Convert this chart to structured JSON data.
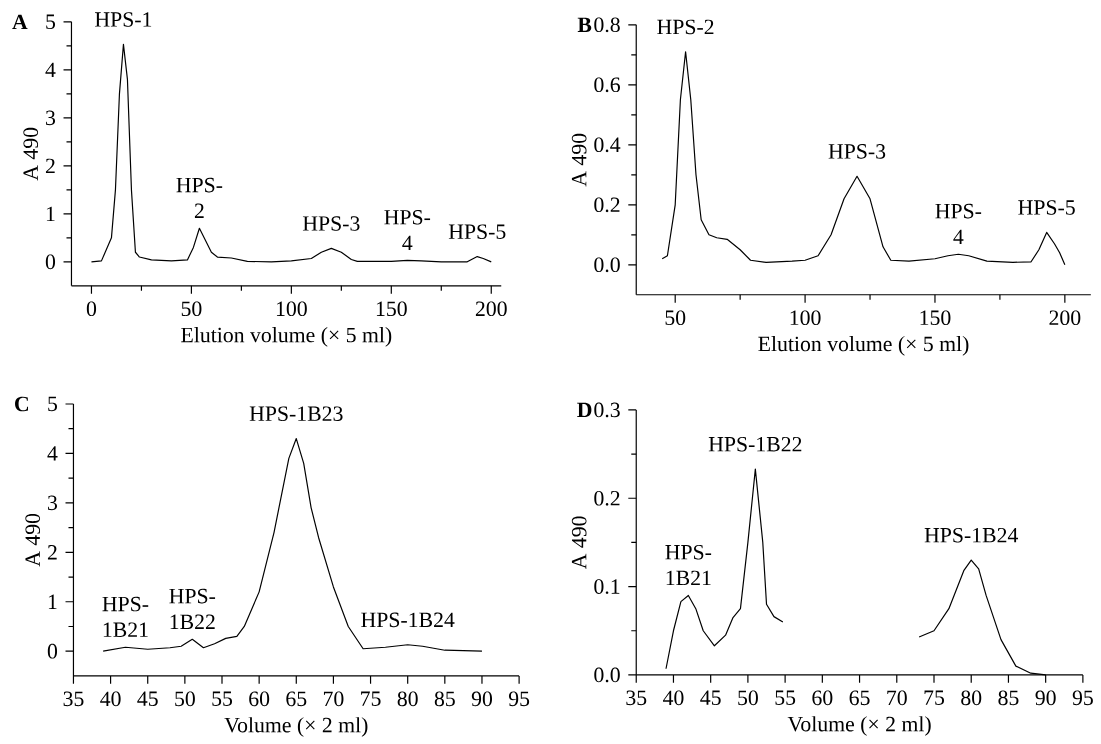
{
  "chart_data": [
    {
      "type": "line",
      "title": "A",
      "xlabel": "Elution volume (× 5 ml)",
      "ylabel": "A 490",
      "color": "#000000",
      "x": [
        0,
        5,
        10,
        12,
        14,
        16,
        18,
        20,
        22,
        24,
        30,
        40,
        48,
        51,
        54,
        57,
        60,
        63,
        70,
        78,
        90,
        100,
        110,
        115,
        120,
        125,
        130,
        133,
        150,
        158,
        165,
        175,
        188,
        193,
        196,
        200
      ],
      "values": [
        0,
        0.02,
        0.5,
        1.5,
        3.5,
        4.53,
        3.8,
        1.5,
        0.2,
        0.1,
        0.04,
        0.02,
        0.04,
        0.3,
        0.7,
        0.45,
        0.2,
        0.1,
        0.08,
        0.01,
        0,
        0.02,
        0.07,
        0.2,
        0.28,
        0.2,
        0.05,
        0.01,
        0.01,
        0.03,
        0.02,
        0,
        0,
        0.11,
        0.07,
        0
      ],
      "xlim": [
        -10,
        205
      ],
      "ylim": [
        -0.5,
        5
      ],
      "xticks": [
        0,
        50,
        100,
        150,
        200
      ],
      "yticks": [
        0,
        1,
        2,
        3,
        4,
        5
      ],
      "annotations": [
        {
          "text": "HPS-1",
          "x": 16,
          "y": 4.53
        },
        {
          "text": "HPS-2",
          "x": 54,
          "y": 0.7
        },
        {
          "text": "HPS-3",
          "x": 120,
          "y": 0.28
        },
        {
          "text": "HPS-4",
          "x": 158,
          "y": 0.03
        },
        {
          "text": "HPS-5",
          "x": 193,
          "y": 0.11
        }
      ]
    },
    {
      "type": "line",
      "title": "B",
      "xlabel": "Elution volume (× 5 ml)",
      "ylabel": "A 490",
      "color": "#000000",
      "x": [
        45,
        47,
        50,
        52,
        54,
        56,
        58,
        60,
        63,
        66,
        70,
        75,
        79,
        85,
        95,
        100,
        105,
        110,
        115,
        120,
        125,
        130,
        133,
        140,
        150,
        155,
        159,
        163,
        170,
        180,
        187,
        190,
        193,
        196,
        198,
        200
      ],
      "values": [
        0.02,
        0.03,
        0.2,
        0.55,
        0.71,
        0.55,
        0.3,
        0.15,
        0.1,
        0.09,
        0.085,
        0.05,
        0.015,
        0.008,
        0.012,
        0.015,
        0.03,
        0.1,
        0.22,
        0.295,
        0.22,
        0.06,
        0.015,
        0.012,
        0.02,
        0.03,
        0.035,
        0.03,
        0.012,
        0.008,
        0.01,
        0.05,
        0.108,
        0.07,
        0.04,
        0
      ],
      "xlim": [
        35,
        210
      ],
      "ylim": [
        -0.1,
        0.8
      ],
      "xticks": [
        50,
        100,
        150,
        200
      ],
      "yticks": [
        {
          "value": 0,
          "label": "0.0"
        },
        0.2,
        0.4,
        0.6,
        0.8
      ],
      "annotations": [
        {
          "text": "HPS-2",
          "x": 54,
          "y": 0.71
        },
        {
          "text": "HPS-3",
          "x": 120,
          "y": 0.295
        },
        {
          "text": "HPS-4",
          "x": 159,
          "y": 0.035
        },
        {
          "text": "HPS-5",
          "x": 193,
          "y": 0.108
        }
      ]
    },
    {
      "type": "line",
      "title": "C",
      "xlabel": "Volume (× 2 ml)",
      "ylabel": "A 490",
      "color": "#000000",
      "x": [
        39,
        42,
        45,
        48,
        49.5,
        51,
        52.5,
        54,
        55.5,
        57,
        58,
        60,
        62,
        64,
        65,
        66,
        67,
        68,
        70,
        72,
        74,
        77,
        80,
        82,
        85,
        90
      ],
      "values": [
        0,
        0.08,
        0.04,
        0.07,
        0.1,
        0.24,
        0.07,
        0.15,
        0.26,
        0.3,
        0.5,
        1.2,
        2.4,
        3.9,
        4.3,
        3.8,
        2.9,
        2.3,
        1.3,
        0.5,
        0.05,
        0.08,
        0.13,
        0.1,
        0.02,
        0
      ],
      "xlim": [
        35,
        95
      ],
      "ylim": [
        -0.5,
        5
      ],
      "xticks": [
        35,
        40,
        45,
        50,
        55,
        60,
        65,
        70,
        75,
        80,
        85,
        90,
        95
      ],
      "yticks": [
        0,
        1,
        2,
        3,
        4,
        5
      ],
      "annotations": [
        {
          "text": "HPS-1B21",
          "x": 42,
          "y": 0.08
        },
        {
          "text": "HPS-1B22",
          "x": 51,
          "y": 0.24
        },
        {
          "text": "HPS-1B23",
          "x": 65,
          "y": 4.3
        },
        {
          "text": "HPS-1B24",
          "x": 80,
          "y": 0.13
        }
      ]
    },
    {
      "type": "line",
      "title": "D",
      "xlabel": "Volume (× 2 ml)",
      "ylabel": "A 490",
      "color": "#000000",
      "x": [
        39,
        40,
        41,
        42,
        43,
        44,
        45.5,
        47,
        48,
        49,
        50,
        51,
        52,
        52.5,
        53.5,
        54.7,
        64,
        73,
        75,
        77,
        79,
        80,
        81,
        82,
        84,
        86,
        88,
        90
      ],
      "values": [
        0.007,
        0.05,
        0.083,
        0.09,
        0.075,
        0.05,
        0.033,
        0.045,
        0.065,
        0.075,
        0.15,
        0.233,
        0.15,
        0.08,
        0.066,
        0.06,
        null,
        0.043,
        0.05,
        0.075,
        0.118,
        0.13,
        0.12,
        0.09,
        0.04,
        0.01,
        0.002,
        0
      ],
      "xlim": [
        35,
        95
      ],
      "ylim": [
        0,
        0.3
      ],
      "xticks": [
        35,
        40,
        45,
        50,
        55,
        60,
        65,
        70,
        75,
        80,
        85,
        90,
        95
      ],
      "yticks": [
        {
          "value": 0,
          "label": "0.0"
        },
        0.1,
        0.2,
        0.3
      ],
      "annotations": [
        {
          "text": "HPS-1B21",
          "x": 42,
          "y": 0.09
        },
        {
          "text": "HPS-1B22",
          "x": 51,
          "y": 0.233
        },
        {
          "text": "HPS-1B24",
          "x": 80,
          "y": 0.13
        }
      ]
    }
  ]
}
